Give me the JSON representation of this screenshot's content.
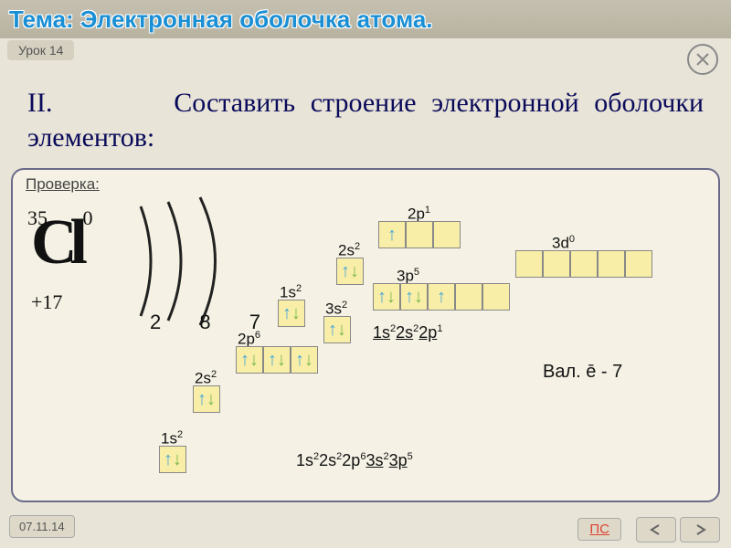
{
  "header": {
    "title": "Тема: Электронная оболочка атома."
  },
  "lesson": {
    "label": "Урок 14"
  },
  "task": {
    "roman": "II.",
    "text": "Составить строение электронной оболочки элементов:"
  },
  "panel": {
    "check_label": "Проверка:",
    "element": {
      "symbol_overlay": "Cl",
      "top_num": "35",
      "zero": "0",
      "z": "+17"
    },
    "shells": {
      "counts": "2 8 7"
    },
    "orbitals": {
      "r1_1s": {
        "label": "1s",
        "sup": "2",
        "cells": [
          "ud"
        ]
      },
      "r2_2s": {
        "label": "2s",
        "sup": "2",
        "cells": [
          "ud"
        ]
      },
      "r2_2p": {
        "label": "2p",
        "sup": "6",
        "cells": [
          "ud",
          "ud",
          "ud"
        ]
      },
      "r3_1s": {
        "label": "1s",
        "sup": "2",
        "cells": [
          "ud"
        ]
      },
      "r3_3s": {
        "label": "3s",
        "sup": "2",
        "cells": [
          "ud"
        ]
      },
      "r4_2s": {
        "label": "2s",
        "sup": "2",
        "cells": [
          "ud"
        ]
      },
      "r4_3p": {
        "label": "3p",
        "sup": "5",
        "cells": [
          "ud",
          "ud",
          "u",
          "",
          ""
        ]
      },
      "r5_2p": {
        "label": "2p",
        "sup": "1",
        "cells": [
          "u",
          "",
          ""
        ]
      },
      "r5_3d": {
        "label": "3d",
        "sup": "0",
        "cells": [
          "",
          "",
          "",
          "",
          ""
        ]
      }
    },
    "formulas": {
      "bottom": "1s²2s²2p⁶3s²3p⁵",
      "mid": "1s²2s²2p¹"
    },
    "valence": "Вал. ē - 7"
  },
  "footer": {
    "date": "07.11.14",
    "ps": "ПС"
  },
  "colors": {
    "bg": "#e8e4d8",
    "panel_bg": "#f5f2e5",
    "panel_border": "#6a6a8a",
    "title": "#1a8fd4",
    "task_text": "#0a0a5a",
    "cell_fill": "#f9eea8",
    "cell_border": "#888888",
    "arrow_up": "#4aa8d4",
    "arrow_down": "#7ab84a",
    "arc_stroke": "#222222",
    "ps_color": "#d43"
  }
}
